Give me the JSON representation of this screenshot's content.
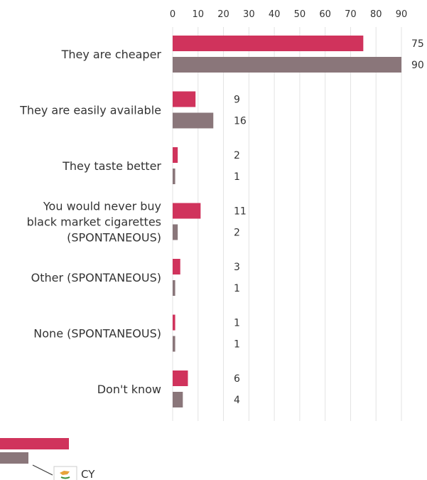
{
  "colors": {
    "series_1": "#d0335c",
    "series_2": "#8a767a",
    "grid": "#e3e3e3",
    "text": "#333333"
  },
  "chart_data": {
    "type": "bar",
    "orientation": "horizontal",
    "categories": [
      [
        "They are cheaper"
      ],
      [
        "They are easily available"
      ],
      [
        "They taste better"
      ],
      [
        "You would never buy",
        "black market cigarettes",
        "(SPONTANEOUS)"
      ],
      [
        "Other (SPONTANEOUS)"
      ],
      [
        "None (SPONTANEOUS)"
      ],
      [
        "Don't know"
      ]
    ],
    "series": [
      {
        "values": [
          75,
          9,
          2,
          11,
          3,
          1,
          6
        ],
        "color": "#d0335c"
      },
      {
        "values": [
          90,
          16,
          1,
          2,
          1,
          1,
          4
        ],
        "color": "#8a767a"
      }
    ],
    "x_ticks": [
      0,
      10,
      20,
      30,
      40,
      50,
      60,
      70,
      80,
      90
    ],
    "xlim": [
      0,
      90
    ],
    "axis_position": "top",
    "grid": true,
    "legend": {
      "position": "bottom-left",
      "label": "CY",
      "icon": "cyprus-flag-icon"
    }
  }
}
